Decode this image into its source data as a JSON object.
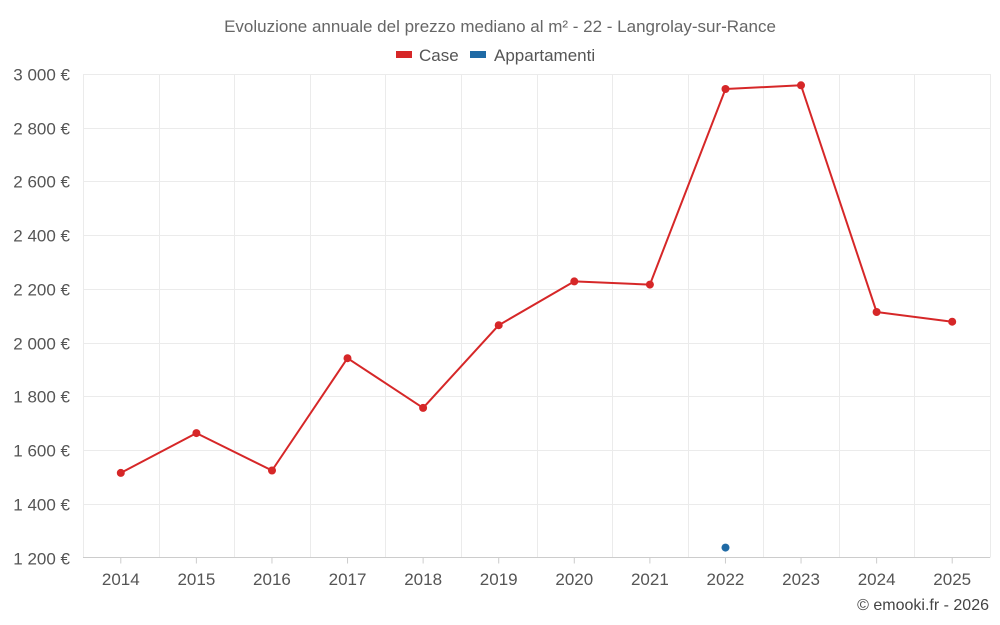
{
  "chart_data": {
    "type": "line",
    "title": "Evoluzione annuale del prezzo mediano al m² - 22 - Langrolay-sur-Rance",
    "categories": [
      "2014",
      "2015",
      "2016",
      "2017",
      "2018",
      "2019",
      "2020",
      "2021",
      "2022",
      "2023",
      "2024",
      "2025"
    ],
    "ylim": [
      1200,
      3000
    ],
    "yticks": [
      1200,
      1400,
      1600,
      1800,
      2000,
      2200,
      2400,
      2600,
      2800,
      3000
    ],
    "ytick_labels": [
      "1 200 €",
      "1 400 €",
      "1 600 €",
      "1 800 €",
      "2 000 €",
      "2 200 €",
      "2 400 €",
      "2 600 €",
      "2 800 €",
      "3 000 €"
    ],
    "grid": true,
    "legend_position": "top-center",
    "series": [
      {
        "name": "Case",
        "color": "#d62728",
        "values": [
          1515,
          1663,
          1524,
          1942,
          1757,
          2065,
          2228,
          2216,
          2944,
          2958,
          2114,
          2078
        ]
      },
      {
        "name": "Appartamenti",
        "color": "#1f6aa5",
        "values": [
          null,
          null,
          null,
          null,
          null,
          null,
          null,
          null,
          1237,
          null,
          null,
          null
        ]
      }
    ]
  },
  "credit": "© emooki.fr - 2026"
}
